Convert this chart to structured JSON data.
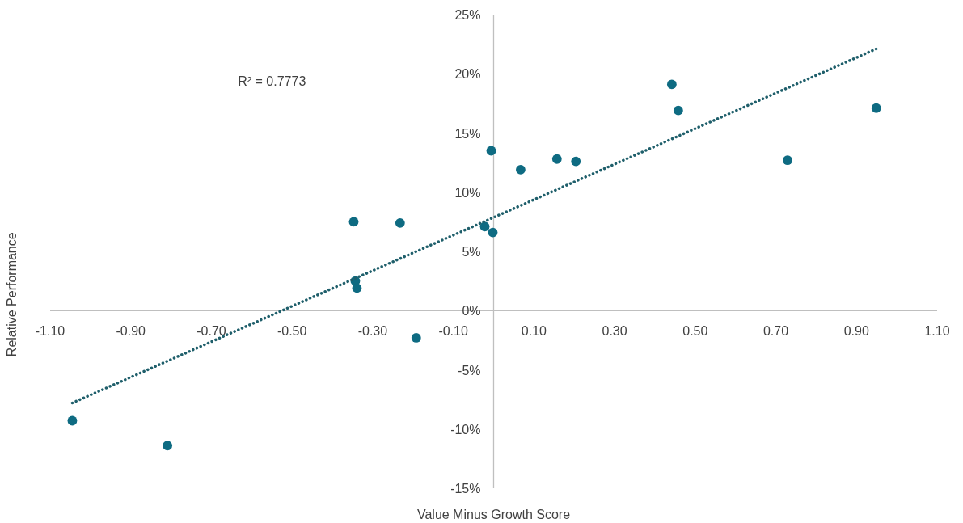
{
  "chart_data": {
    "type": "scatter",
    "xlabel": "Value Minus Growth Score",
    "ylabel": "Relative Performance",
    "annotations": [
      "R² = 0.7773"
    ],
    "xlim": [
      -1.1,
      1.1
    ],
    "xticks": [
      {
        "value": -1.1,
        "label": "-1.10"
      },
      {
        "value": -0.9,
        "label": "-0.90"
      },
      {
        "value": -0.7,
        "label": "-0.70"
      },
      {
        "value": -0.5,
        "label": "-0.50"
      },
      {
        "value": -0.3,
        "label": "-0.30"
      },
      {
        "value": -0.1,
        "label": "-0.10"
      },
      {
        "value": 0.1,
        "label": "0.10"
      },
      {
        "value": 0.3,
        "label": "0.30"
      },
      {
        "value": 0.5,
        "label": "0.50"
      },
      {
        "value": 0.7,
        "label": "0.70"
      },
      {
        "value": 0.9,
        "label": "0.90"
      },
      {
        "value": 1.1,
        "label": "1.10"
      }
    ],
    "ylim": [
      -15,
      25
    ],
    "yticks": [
      {
        "value": -15,
        "label": "-15%"
      },
      {
        "value": -10,
        "label": "-10%"
      },
      {
        "value": -5,
        "label": "-5%"
      },
      {
        "value": 0,
        "label": "0%"
      },
      {
        "value": 5,
        "label": "5%"
      },
      {
        "value": 10,
        "label": "10%"
      },
      {
        "value": 15,
        "label": "15%"
      },
      {
        "value": 20,
        "label": "20%"
      },
      {
        "value": 25,
        "label": "25%"
      }
    ],
    "grid": false,
    "marker": "circle",
    "series": [
      {
        "color": "#0e6b82",
        "x": [
          -1.045,
          -0.809,
          -0.347,
          -0.232,
          -0.343,
          -0.339,
          -0.192,
          -0.022,
          -0.002,
          -0.006,
          0.067,
          0.157,
          0.204,
          0.442,
          0.458,
          0.729,
          0.949
        ],
        "values": [
          -9.3,
          -11.4,
          7.5,
          7.4,
          2.5,
          1.9,
          -2.3,
          7.1,
          6.6,
          13.5,
          11.9,
          12.8,
          12.6,
          19.1,
          16.9,
          12.7,
          17.1
        ]
      },
      {
        "type": "line",
        "color": "#1f5f6b",
        "line_style": "dotted",
        "marker": "none",
        "x": [
          -1.045,
          0.949
        ],
        "values": [
          -7.8,
          22.1
        ]
      }
    ]
  }
}
